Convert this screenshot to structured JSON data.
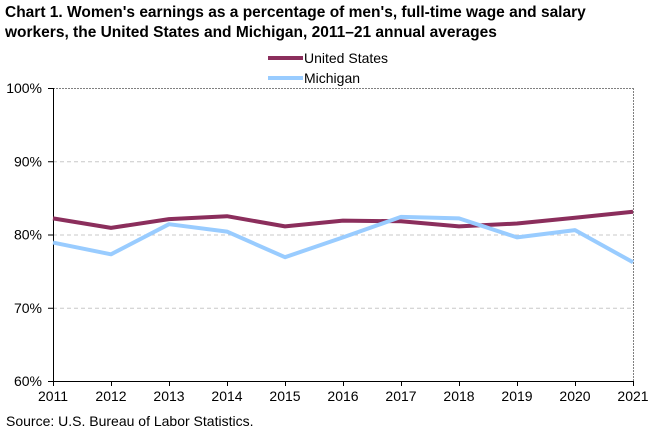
{
  "title_lines": [
    "Chart 1. Women's earnings as a percentage of men's, full-time wage and salary",
    "workers, the United States and Michigan,  2011–21 annual averages"
  ],
  "source": "Source:  U.S. Bureau of Labor Statistics.",
  "colors": {
    "united_states": "#8B2E5C",
    "michigan": "#99CCFF",
    "axis": "#000000",
    "border": "#808080",
    "gridline": "#C8C8C8"
  },
  "chart_data": {
    "type": "line",
    "title": "Chart 1. Women's earnings as a percentage of men's, full-time wage and salary workers, the United States and Michigan,  2011–21 annual averages",
    "xlabel": "",
    "ylabel": "",
    "x": [
      "2011",
      "2012",
      "2013",
      "2014",
      "2015",
      "2016",
      "2017",
      "2018",
      "2019",
      "2020",
      "2021"
    ],
    "series": [
      {
        "name": "United States",
        "color": "#8B2E5C",
        "values": [
          82.2,
          80.9,
          82.1,
          82.5,
          81.1,
          81.9,
          81.8,
          81.1,
          81.5,
          82.3,
          83.1
        ]
      },
      {
        "name": "Michigan",
        "color": "#99CCFF",
        "values": [
          78.9,
          77.3,
          81.4,
          80.4,
          76.9,
          79.6,
          82.4,
          82.2,
          79.6,
          80.6,
          76.2
        ]
      }
    ],
    "ylim": [
      60,
      100
    ],
    "yticks": [
      60,
      70,
      80,
      90,
      100
    ],
    "ytick_labels": [
      "60%",
      "70%",
      "80%",
      "90%",
      "100%"
    ],
    "grid": "horizontal dashed",
    "legend_position": "top-center"
  }
}
